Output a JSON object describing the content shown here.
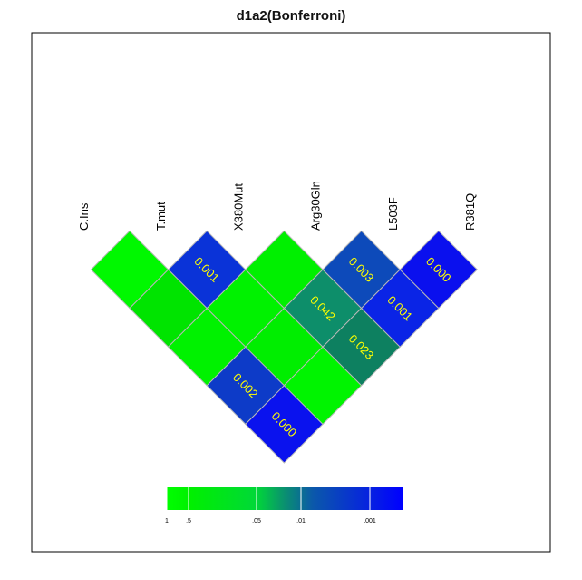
{
  "chart_data": {
    "type": "heatmap",
    "title": "d1a2(Bonferroni)",
    "variables": [
      "C.Ins",
      "T.mut",
      "X380Mut",
      "Arg30Gln",
      "L503F",
      "R381Q"
    ],
    "cells": [
      {
        "i": 0,
        "j": 1,
        "value": null,
        "label": "",
        "color": "#00f800"
      },
      {
        "i": 1,
        "j": 2,
        "value": 0.001,
        "label": "0.001",
        "color": "#0a33d8"
      },
      {
        "i": 2,
        "j": 3,
        "value": null,
        "label": "",
        "color": "#00f000"
      },
      {
        "i": 3,
        "j": 4,
        "value": 0.003,
        "label": "0.003",
        "color": "#0d4aba"
      },
      {
        "i": 4,
        "j": 5,
        "value": 0.0,
        "label": "0.000",
        "color": "#0a10ee"
      },
      {
        "i": 0,
        "j": 2,
        "value": null,
        "label": "",
        "color": "#00e400"
      },
      {
        "i": 1,
        "j": 3,
        "value": null,
        "label": "",
        "color": "#00f200"
      },
      {
        "i": 2,
        "j": 4,
        "value": 0.042,
        "label": "0.042",
        "color": "#0d8e6a"
      },
      {
        "i": 3,
        "j": 5,
        "value": 0.001,
        "label": "0.001",
        "color": "#0a24e6"
      },
      {
        "i": 0,
        "j": 3,
        "value": null,
        "label": "",
        "color": "#00f200"
      },
      {
        "i": 1,
        "j": 4,
        "value": null,
        "label": "",
        "color": "#00ee00"
      },
      {
        "i": 2,
        "j": 5,
        "value": 0.023,
        "label": "0.023",
        "color": "#0d8060"
      },
      {
        "i": 0,
        "j": 4,
        "value": 0.002,
        "label": "0.002",
        "color": "#0d3bc8"
      },
      {
        "i": 1,
        "j": 5,
        "value": null,
        "label": "",
        "color": "#00f400"
      },
      {
        "i": 0,
        "j": 5,
        "value": 0.0,
        "label": "0.000",
        "color": "#0a12ee"
      }
    ],
    "colorbar": {
      "ticks": [
        "1",
        ".5",
        ".05",
        ".01",
        ".001"
      ],
      "tick_values": [
        1,
        0.5,
        0.05,
        0.01,
        0.001
      ],
      "colors": [
        "#00ff00",
        "#00ee00",
        "#00dd33",
        "#0d8e6a",
        "#0d4aba",
        "#0000ff"
      ]
    },
    "grid": false,
    "legend": "bottom-center"
  }
}
